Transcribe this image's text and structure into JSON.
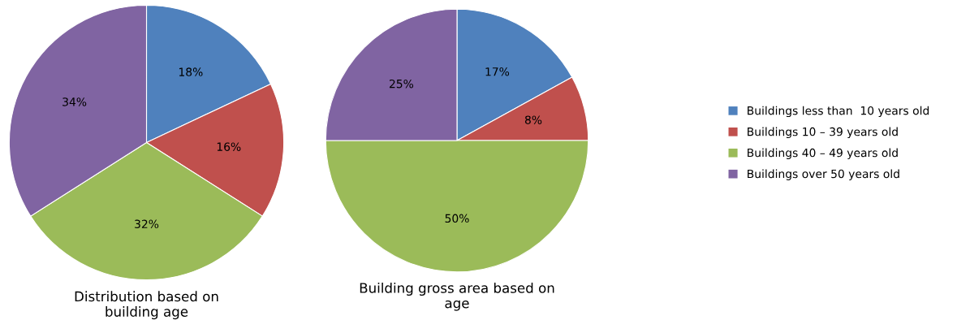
{
  "chart_data": [
    {
      "type": "pie",
      "title": "Distribution based on\nbuilding age",
      "categories": [
        "Buildings less than  10 years old",
        "Buildings 10 – 39 years old",
        "Buildings 40 – 49 years old",
        "Buildings over 50 years old"
      ],
      "values": [
        18,
        16,
        32,
        34
      ],
      "colors": [
        "#4f81bd",
        "#c0504d",
        "#9bbb59",
        "#8064a2"
      ],
      "value_labels": [
        "18%",
        "16%",
        "32%",
        "34%"
      ],
      "legend": "right"
    },
    {
      "type": "pie",
      "title": "Building gross area based on\nage",
      "categories": [
        null,
        null,
        null,
        null
      ],
      "values": [
        17,
        8,
        50,
        25
      ],
      "colors": [
        "#4f81bd",
        "#c0504d",
        "#9bbb59",
        "#8064a2"
      ],
      "value_labels": [
        "17%",
        "8%",
        "50%",
        "25%"
      ]
    }
  ]
}
